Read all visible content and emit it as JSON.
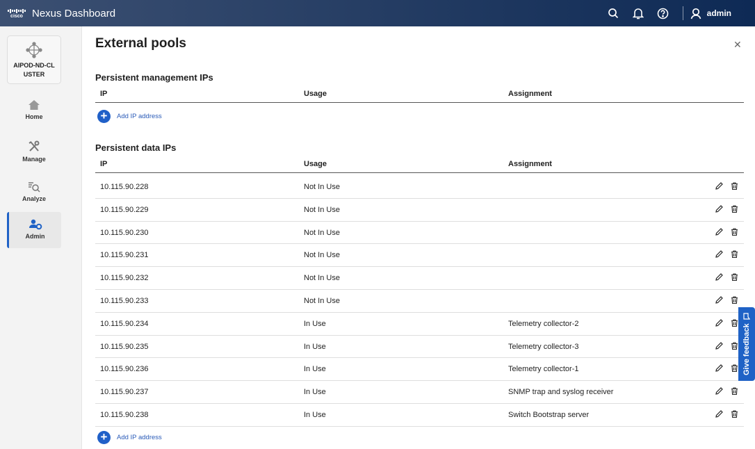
{
  "header": {
    "logo": "cisco",
    "title": "Nexus Dashboard",
    "user": "admin"
  },
  "sidebar": {
    "cluster": "AIPOD-ND-CLUSTER",
    "items": [
      {
        "label": "Home",
        "icon": "home-icon"
      },
      {
        "label": "Manage",
        "icon": "tools-icon"
      },
      {
        "label": "Analyze",
        "icon": "analyze-icon"
      },
      {
        "label": "Admin",
        "icon": "admin-icon",
        "active": true
      }
    ]
  },
  "page": {
    "title": "External pools"
  },
  "mgmt": {
    "title": "Persistent management IPs",
    "columns": [
      "IP",
      "Usage",
      "Assignment"
    ],
    "add_label": "Add IP address"
  },
  "data": {
    "title": "Persistent data IPs",
    "columns": [
      "IP",
      "Usage",
      "Assignment"
    ],
    "add_label": "Add IP address",
    "rows": [
      {
        "ip": "10.115.90.228",
        "usage": "Not In Use",
        "assignment": ""
      },
      {
        "ip": "10.115.90.229",
        "usage": "Not In Use",
        "assignment": ""
      },
      {
        "ip": "10.115.90.230",
        "usage": "Not In Use",
        "assignment": ""
      },
      {
        "ip": "10.115.90.231",
        "usage": "Not In Use",
        "assignment": ""
      },
      {
        "ip": "10.115.90.232",
        "usage": "Not In Use",
        "assignment": ""
      },
      {
        "ip": "10.115.90.233",
        "usage": "Not In Use",
        "assignment": ""
      },
      {
        "ip": "10.115.90.234",
        "usage": "In Use",
        "assignment": "Telemetry collector-2"
      },
      {
        "ip": "10.115.90.235",
        "usage": "In Use",
        "assignment": "Telemetry collector-3"
      },
      {
        "ip": "10.115.90.236",
        "usage": "In Use",
        "assignment": "Telemetry collector-1"
      },
      {
        "ip": "10.115.90.237",
        "usage": "In Use",
        "assignment": "SNMP trap and syslog receiver"
      },
      {
        "ip": "10.115.90.238",
        "usage": "In Use",
        "assignment": "Switch Bootstrap server"
      }
    ]
  },
  "feedback": {
    "label": "Give feedback"
  },
  "colors": {
    "accent": "#1f62c6",
    "header_start": "#3c5072",
    "header_end": "#0e2a55"
  }
}
